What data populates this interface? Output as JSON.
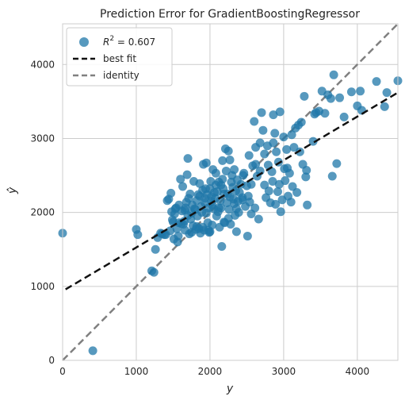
{
  "chart_data": {
    "type": "scatter",
    "title": "Prediction Error for GradientBoostingRegressor",
    "xlabel": "y",
    "ylabel": "ŷ",
    "xlim": [
      0,
      4550
    ],
    "ylim": [
      0,
      4550
    ],
    "xticks": [
      0,
      1000,
      2000,
      3000,
      4000
    ],
    "yticks": [
      0,
      1000,
      2000,
      3000,
      4000
    ],
    "grid": true,
    "legend_position": "top-left",
    "r2": 0.607,
    "legend": {
      "r2_label_prefix": "R",
      "r2_label_sup": "2",
      "r2_label_suffix": " = 0.607",
      "best_fit": "best fit",
      "identity": "identity"
    },
    "colors": {
      "points": "#1f77a8",
      "best_fit": "#111111",
      "identity": "#808080",
      "grid": "#cccccc",
      "frame": "#cccccc"
    },
    "best_fit_line": {
      "x": [
        40,
        4550
      ],
      "y": [
        960,
        3620
      ]
    },
    "identity_line": {
      "x": [
        0,
        4550
      ],
      "y": [
        0,
        4550
      ]
    },
    "points": [
      [
        0,
        1720
      ],
      [
        410,
        130
      ],
      [
        1000,
        1770
      ],
      [
        1020,
        1700
      ],
      [
        1210,
        1210
      ],
      [
        1240,
        1190
      ],
      [
        1260,
        1500
      ],
      [
        1290,
        1660
      ],
      [
        1330,
        1720
      ],
      [
        1350,
        1710
      ],
      [
        1380,
        1700
      ],
      [
        1400,
        1700
      ],
      [
        1420,
        2160
      ],
      [
        1440,
        2180
      ],
      [
        1460,
        1750
      ],
      [
        1470,
        2260
      ],
      [
        1480,
        2010
      ],
      [
        1490,
        1900
      ],
      [
        1500,
        1870
      ],
      [
        1510,
        1640
      ],
      [
        1520,
        1980
      ],
      [
        1530,
        2050
      ],
      [
        1540,
        2060
      ],
      [
        1550,
        1780
      ],
      [
        1560,
        1600
      ],
      [
        1570,
        1680
      ],
      [
        1580,
        2100
      ],
      [
        1600,
        2450
      ],
      [
        1610,
        1850
      ],
      [
        1620,
        2020
      ],
      [
        1630,
        2350
      ],
      [
        1640,
        1840
      ],
      [
        1650,
        1880
      ],
      [
        1660,
        2030
      ],
      [
        1670,
        2060
      ],
      [
        1680,
        2140
      ],
      [
        1690,
        2510
      ],
      [
        1700,
        2730
      ],
      [
        1710,
        2190
      ],
      [
        1720,
        1710
      ],
      [
        1730,
        2250
      ],
      [
        1740,
        1910
      ],
      [
        1750,
        1990
      ],
      [
        1760,
        2100
      ],
      [
        1770,
        1820
      ],
      [
        1780,
        2420
      ],
      [
        1790,
        2050
      ],
      [
        1800,
        2040
      ],
      [
        1810,
        1770
      ],
      [
        1820,
        2160
      ],
      [
        1830,
        1950
      ],
      [
        1840,
        2240
      ],
      [
        1850,
        1780
      ],
      [
        1860,
        2220
      ],
      [
        1870,
        1720
      ],
      [
        1880,
        2080
      ],
      [
        1890,
        2000
      ],
      [
        1900,
        2300
      ],
      [
        1910,
        2650
      ],
      [
        1920,
        1760
      ],
      [
        1930,
        2130
      ],
      [
        1940,
        2320
      ],
      [
        1950,
        2670
      ],
      [
        1960,
        2240
      ],
      [
        1970,
        1860
      ],
      [
        1980,
        1760
      ],
      [
        1990,
        1730
      ],
      [
        2000,
        1740
      ],
      [
        2010,
        2420
      ],
      [
        2020,
        2150
      ],
      [
        2030,
        2100
      ],
      [
        2040,
        2580
      ],
      [
        2050,
        2050
      ],
      [
        2060,
        2270
      ],
      [
        2070,
        2190
      ],
      [
        2080,
        2370
      ],
      [
        2090,
        1950
      ],
      [
        2100,
        2280
      ],
      [
        2110,
        2010
      ],
      [
        2120,
        2410
      ],
      [
        2130,
        1800
      ],
      [
        2140,
        2160
      ],
      [
        2150,
        2060
      ],
      [
        2160,
        1540
      ],
      [
        2170,
        2450
      ],
      [
        2180,
        2320
      ],
      [
        2190,
        2250
      ],
      [
        2200,
        1860
      ],
      [
        2210,
        2860
      ],
      [
        2220,
        2560
      ],
      [
        2230,
        2130
      ],
      [
        2240,
        2250
      ],
      [
        2250,
        2830
      ],
      [
        2260,
        2040
      ],
      [
        2270,
        2210
      ],
      [
        2280,
        1840
      ],
      [
        2290,
        2410
      ],
      [
        2300,
        2500
      ],
      [
        2310,
        2340
      ],
      [
        2320,
        2180
      ],
      [
        2330,
        2120
      ],
      [
        2340,
        1960
      ],
      [
        2350,
        2290
      ],
      [
        2360,
        1740
      ],
      [
        2370,
        2440
      ],
      [
        2380,
        2150
      ],
      [
        2390,
        2000
      ],
      [
        2400,
        2270
      ],
      [
        2420,
        2380
      ],
      [
        2440,
        2200
      ],
      [
        2460,
        2530
      ],
      [
        2480,
        2080
      ],
      [
        2500,
        2360
      ],
      [
        2510,
        1680
      ],
      [
        2520,
        2220
      ],
      [
        2540,
        2140
      ],
      [
        2560,
        1980
      ],
      [
        2580,
        2630
      ],
      [
        2600,
        3230
      ],
      [
        2620,
        2880
      ],
      [
        2640,
        2490
      ],
      [
        2660,
        1910
      ],
      [
        2680,
        2560
      ],
      [
        2700,
        3350
      ],
      [
        2720,
        3110
      ],
      [
        2740,
        2370
      ],
      [
        2760,
        2200
      ],
      [
        2780,
        2900
      ],
      [
        2790,
        2640
      ],
      [
        2800,
        2290
      ],
      [
        2820,
        2130
      ],
      [
        2840,
        2550
      ],
      [
        2850,
        2420
      ],
      [
        2860,
        2940
      ],
      [
        2880,
        3070
      ],
      [
        2900,
        2820
      ],
      [
        2920,
        2280
      ],
      [
        2930,
        2680
      ],
      [
        2940,
        2380
      ],
      [
        2950,
        3360
      ],
      [
        2960,
        2010
      ],
      [
        2980,
        2170
      ],
      [
        3000,
        3020
      ],
      [
        3010,
        2590
      ],
      [
        3020,
        2430
      ],
      [
        3040,
        2850
      ],
      [
        3060,
        2220
      ],
      [
        3080,
        2530
      ],
      [
        3100,
        2140
      ],
      [
        3120,
        2350
      ],
      [
        3140,
        2880
      ],
      [
        3160,
        3140
      ],
      [
        3180,
        2270
      ],
      [
        3200,
        3180
      ],
      [
        3220,
        2820
      ],
      [
        3240,
        3220
      ],
      [
        3260,
        2650
      ],
      [
        3300,
        2480
      ],
      [
        3310,
        2570
      ],
      [
        3320,
        2100
      ],
      [
        3400,
        2960
      ],
      [
        3420,
        3330
      ],
      [
        3440,
        3350
      ],
      [
        3480,
        3370
      ],
      [
        3520,
        3640
      ],
      [
        3560,
        3340
      ],
      [
        3600,
        3590
      ],
      [
        3640,
        3540
      ],
      [
        3660,
        2490
      ],
      [
        3680,
        3860
      ],
      [
        3720,
        2660
      ],
      [
        3760,
        3550
      ],
      [
        3820,
        3290
      ],
      [
        3920,
        3630
      ],
      [
        4000,
        3440
      ],
      [
        4040,
        3640
      ],
      [
        4060,
        3380
      ],
      [
        4260,
        3770
      ],
      [
        4370,
        3430
      ],
      [
        4400,
        3620
      ],
      [
        4550,
        3780
      ],
      [
        3280,
        3570
      ],
      [
        3110,
        3050
      ],
      [
        2860,
        3320
      ],
      [
        2740,
        2790
      ],
      [
        2620,
        2650
      ],
      [
        2450,
        2500
      ],
      [
        2330,
        2580
      ],
      [
        2170,
        2700
      ],
      [
        1930,
        2190
      ],
      [
        1860,
        2390
      ],
      [
        1750,
        1730
      ],
      [
        2020,
        2210
      ],
      [
        1980,
        2060
      ],
      [
        2080,
        2530
      ],
      [
        2150,
        2370
      ],
      [
        1900,
        1800
      ],
      [
        2250,
        1920
      ],
      [
        2530,
        2770
      ],
      [
        2680,
        2940
      ],
      [
        2890,
        2110
      ],
      [
        3050,
        2600
      ],
      [
        2560,
        2380
      ],
      [
        2000,
        2320
      ],
      [
        2120,
        2060
      ],
      [
        2270,
        2710
      ],
      [
        1950,
        1990
      ],
      [
        1820,
        1810
      ],
      [
        2030,
        1830
      ],
      [
        2190,
        1870
      ],
      [
        1660,
        1760
      ],
      [
        1580,
        1860
      ],
      [
        1700,
        1960
      ],
      [
        2360,
        2050
      ],
      [
        2440,
        2170
      ],
      [
        2610,
        2060
      ]
    ]
  }
}
